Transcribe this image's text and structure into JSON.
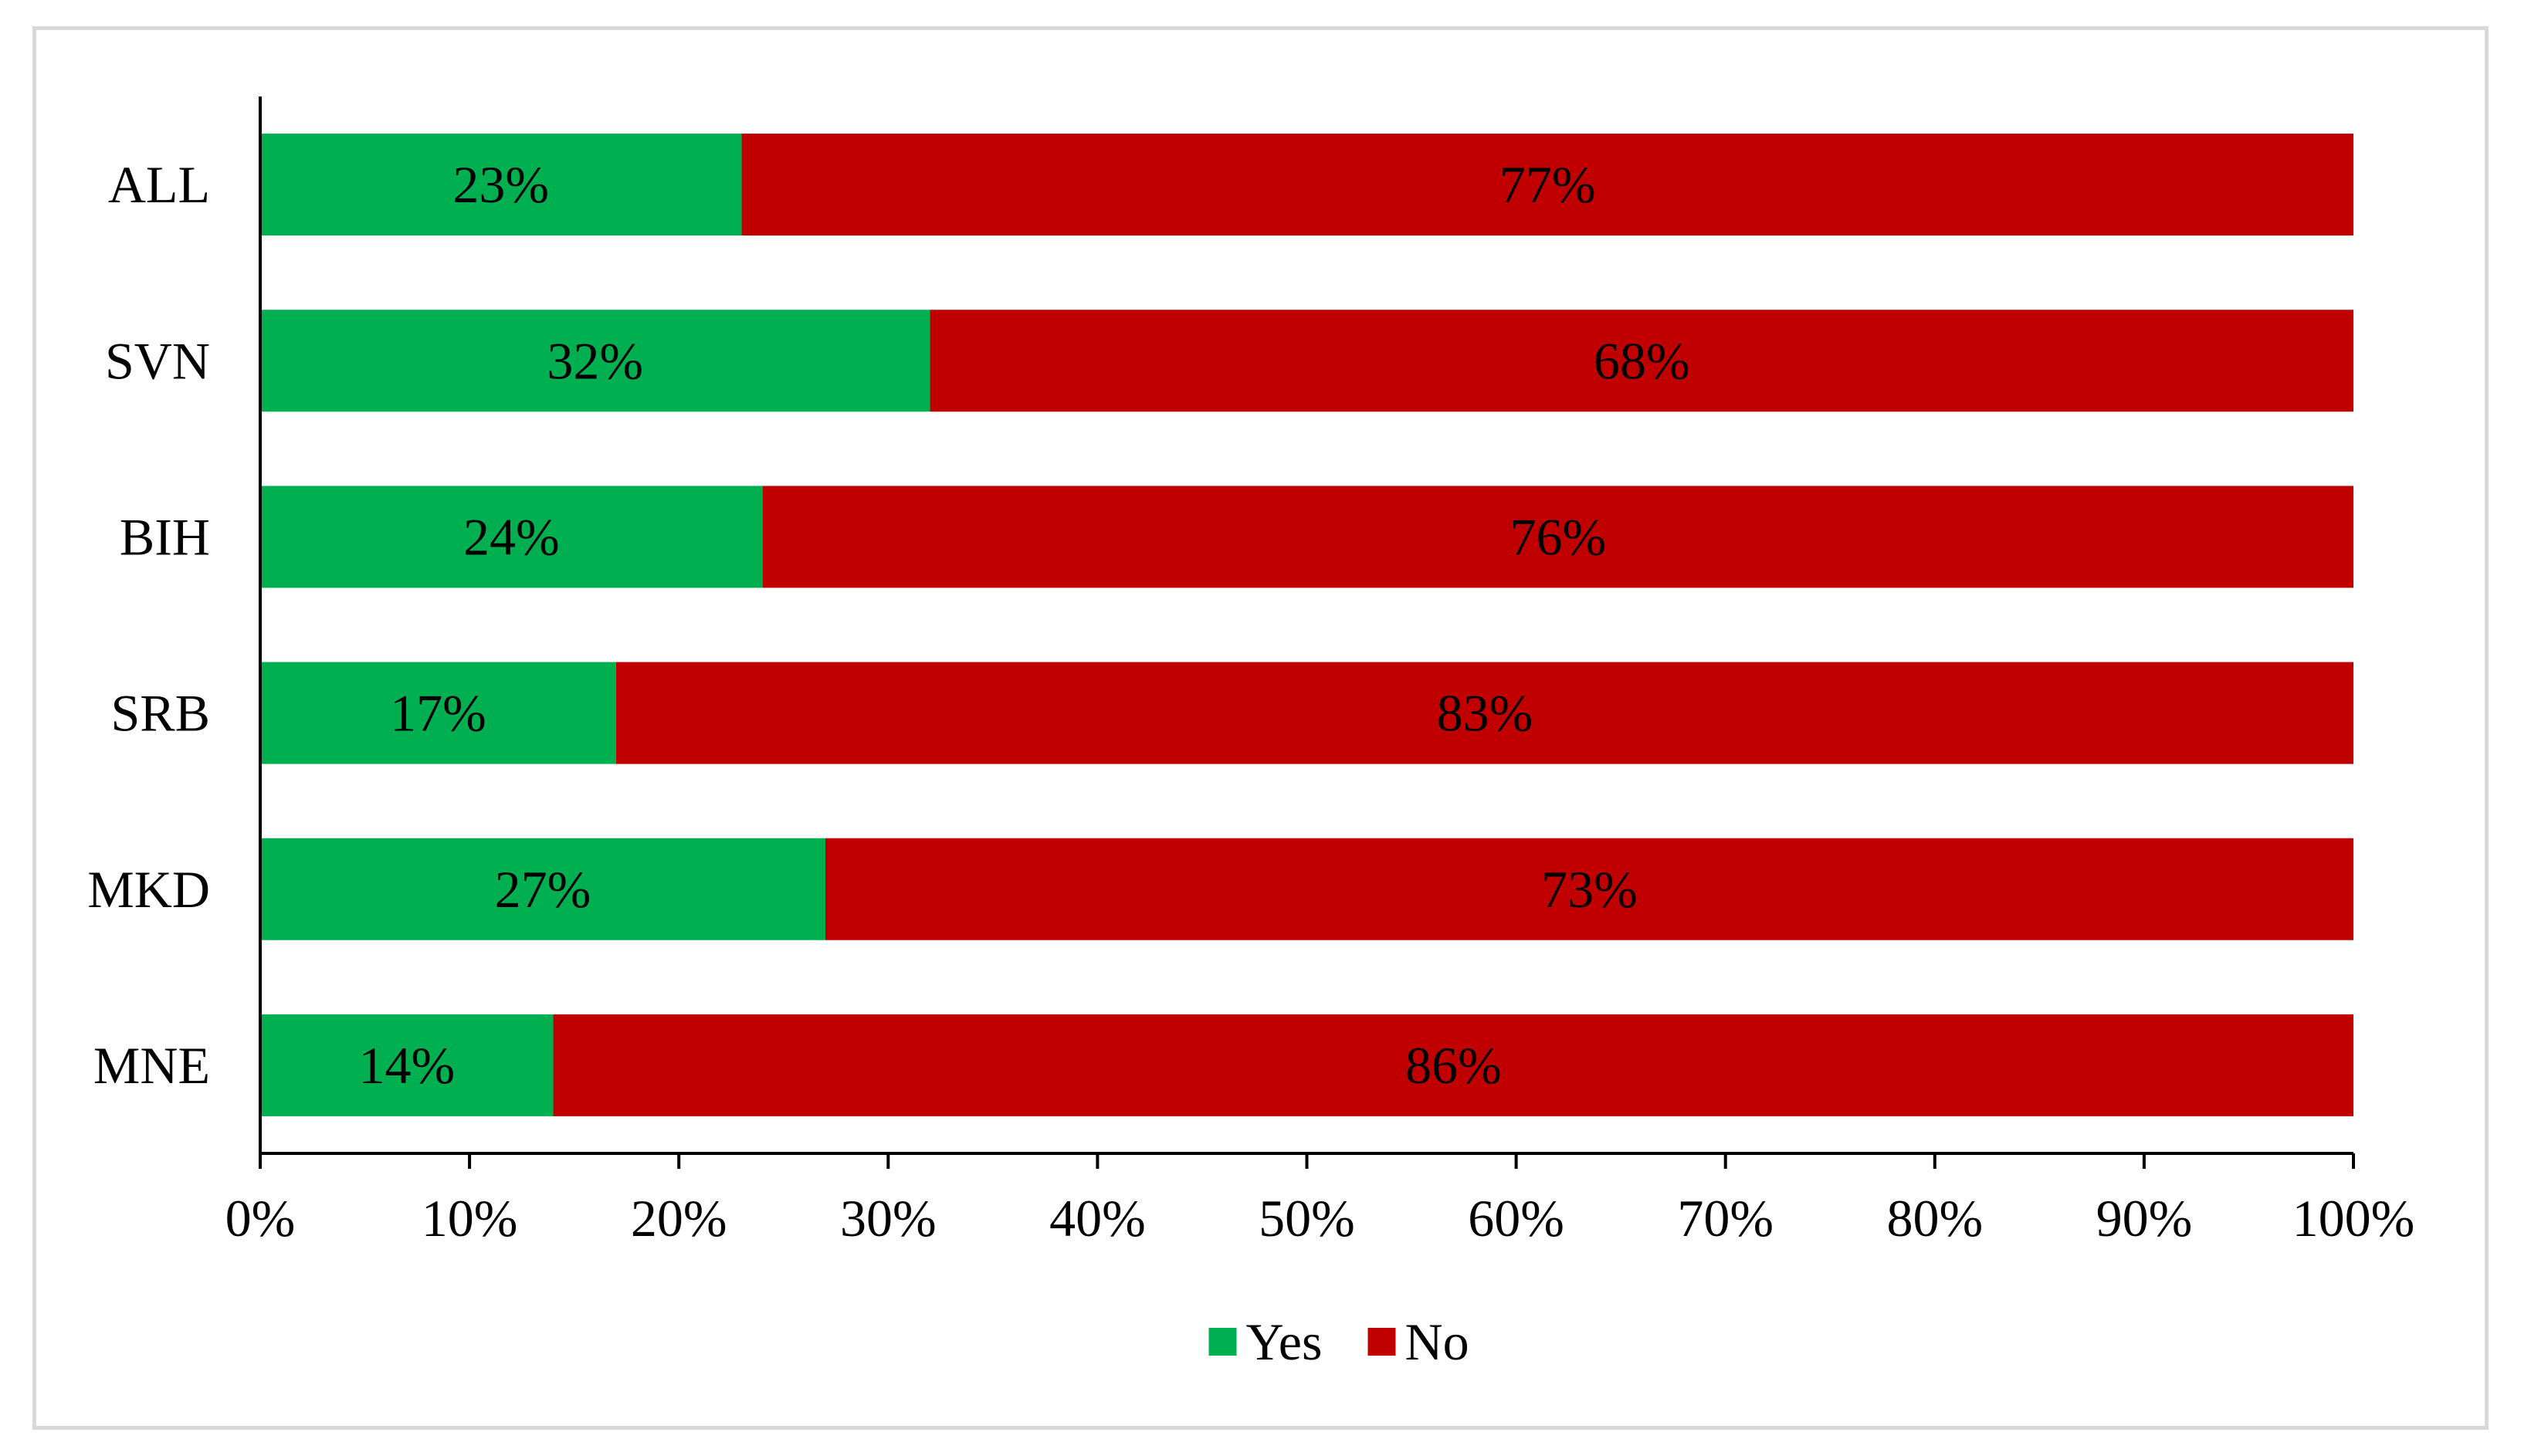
{
  "chart_data": {
    "type": "bar",
    "orientation": "horizontal",
    "stacked": true,
    "categories": [
      "ALL",
      "SVN",
      "BIH",
      "SRB",
      "MKD",
      "MNE"
    ],
    "series": [
      {
        "name": "Yes",
        "color": "#00b050",
        "values": [
          23,
          32,
          24,
          17,
          27,
          14
        ],
        "labels": [
          "23%",
          "32%",
          "24%",
          "17%",
          "27%",
          "14%"
        ]
      },
      {
        "name": "No",
        "color": "#c00000",
        "values": [
          77,
          68,
          76,
          83,
          73,
          86
        ],
        "labels": [
          "77%",
          "68%",
          "76%",
          "83%",
          "73%",
          "86%"
        ]
      }
    ],
    "xlim": [
      0,
      100
    ],
    "x_ticks": [
      "0%",
      "10%",
      "20%",
      "30%",
      "40%",
      "50%",
      "60%",
      "70%",
      "80%",
      "90%",
      "100%"
    ],
    "legend_position": "bottom",
    "grid": false,
    "title": "",
    "xlabel": "",
    "ylabel": ""
  }
}
